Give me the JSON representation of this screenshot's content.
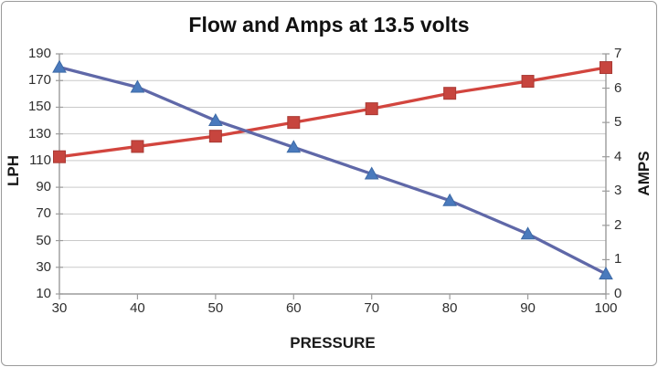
{
  "window": {
    "background": "#FFFFFF",
    "border_color": "#9A9A9A"
  },
  "chart_data": {
    "type": "line",
    "title": "Flow and Amps at 13.5 volts",
    "xlabel": "PRESSURE",
    "ylabel_left": "LPH",
    "ylabel_right": "AMPS",
    "x": [
      30,
      40,
      50,
      60,
      70,
      80,
      90,
      100
    ],
    "x_tick_labels": [
      "30",
      "40",
      "50",
      "60",
      "70",
      "80",
      "90",
      "100"
    ],
    "left_axis": {
      "label": "LPH",
      "min": 10,
      "max": 190,
      "tick_step": 20,
      "tick_labels": [
        "10",
        "30",
        "50",
        "70",
        "90",
        "110",
        "130",
        "150",
        "170",
        "190"
      ]
    },
    "right_axis": {
      "label": "AMPS",
      "min": 0,
      "max": 7,
      "tick_step": 1,
      "tick_labels": [
        "0",
        "1",
        "2",
        "3",
        "4",
        "5",
        "6",
        "7"
      ]
    },
    "series": [
      {
        "name": "Flow (LPH)",
        "axis": "left",
        "marker": "triangle",
        "line_color": "#5F68A8",
        "marker_color": "#4A7ABD",
        "marker_edge": "#3D6AA6",
        "values": [
          180,
          165,
          140,
          120,
          100,
          80,
          55,
          25
        ]
      },
      {
        "name": "Amps",
        "axis": "right",
        "marker": "square",
        "line_color": "#D2453E",
        "marker_color": "#C7453E",
        "marker_edge": "#A93A34",
        "values": [
          4.0,
          4.3,
          4.6,
          5.0,
          5.4,
          5.85,
          6.2,
          6.6
        ]
      }
    ],
    "grid": true,
    "gridline_color": "#C9C9C9",
    "axis_line_color": "#9B9B9B",
    "text_color": "#2F2F2F",
    "legend": "none"
  }
}
